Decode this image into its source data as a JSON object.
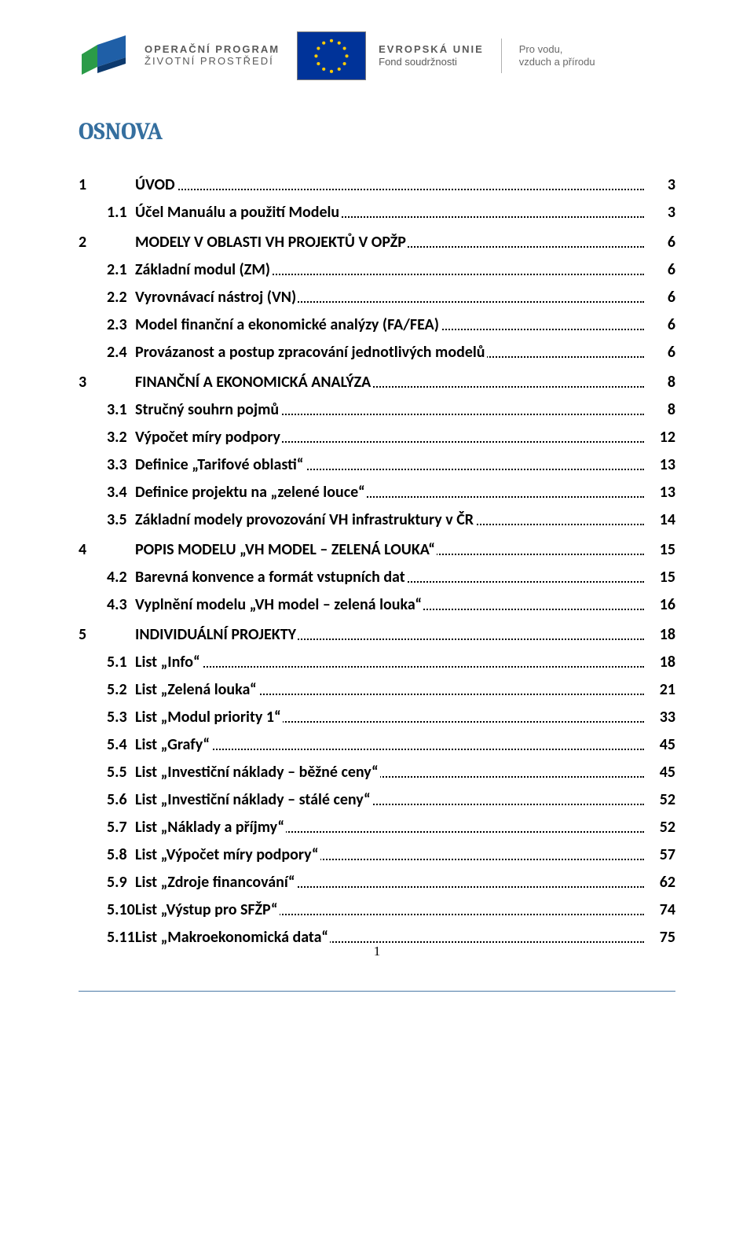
{
  "header": {
    "op_line1": "OPERAČNÍ PROGRAM",
    "op_line2": "ŽIVOTNÍ PROSTŘEDÍ",
    "eu_line1": "EVROPSKÁ UNIE",
    "eu_line2": "Fond soudržnosti",
    "motto_line1": "Pro vodu,",
    "motto_line2": "vzduch a přírodu",
    "logo_colors": {
      "left": "#2b9b48",
      "right": "#1f5fa7"
    },
    "eu_flag_bg": "#003399",
    "eu_star": "#ffcc00"
  },
  "title": "OSNOVA",
  "title_color": "#356f9f",
  "toc": [
    {
      "level": 1,
      "num": "1",
      "label": "ÚVOD",
      "page": "3"
    },
    {
      "level": 2,
      "num": "1.1",
      "label": "Účel Manuálu a použití Modelu",
      "page": "3"
    },
    {
      "level": 1,
      "num": "2",
      "label": "MODELY V OBLASTI VH PROJEKTŮ V OPŽP",
      "page": "6"
    },
    {
      "level": 2,
      "num": "2.1",
      "label": "Základní modul (ZM)",
      "page": "6"
    },
    {
      "level": 2,
      "num": "2.2",
      "label": "Vyrovnávací nástroj (VN)",
      "page": "6"
    },
    {
      "level": 2,
      "num": "2.3",
      "label": "Model finanční a ekonomické analýzy (FA/FEA)",
      "page": "6"
    },
    {
      "level": 2,
      "num": "2.4",
      "label": "Provázanost a postup zpracování jednotlivých modelů",
      "page": "6"
    },
    {
      "level": 1,
      "num": "3",
      "label": "FINANČNÍ A EKONOMICKÁ ANALÝZA",
      "page": "8"
    },
    {
      "level": 2,
      "num": "3.1",
      "label": "Stručný souhrn pojmů",
      "page": "8"
    },
    {
      "level": 2,
      "num": "3.2",
      "label": "Výpočet míry podpory",
      "page": "12"
    },
    {
      "level": 2,
      "num": "3.3",
      "label": "Definice „Tarifové oblasti“",
      "page": "13"
    },
    {
      "level": 2,
      "num": "3.4",
      "label": "Definice projektu na „zelené louce“",
      "page": "13"
    },
    {
      "level": 2,
      "num": "3.5",
      "label": "Základní modely provozování VH infrastruktury v ČR",
      "page": "14"
    },
    {
      "level": 1,
      "num": "4",
      "label": "POPIS MODELU „VH MODEL – ZELENÁ LOUKA“",
      "page": "15"
    },
    {
      "level": 2,
      "num": "4.2",
      "label": "Barevná konvence a formát vstupních dat",
      "page": "15"
    },
    {
      "level": 2,
      "num": "4.3",
      "label": "Vyplnění modelu „VH model – zelená louka“",
      "page": "16"
    },
    {
      "level": 1,
      "num": "5",
      "label": "INDIVIDUÁLNÍ PROJEKTY",
      "page": "18"
    },
    {
      "level": 2,
      "num": "5.1",
      "label": "List „Info“",
      "page": "18"
    },
    {
      "level": 2,
      "num": "5.2",
      "label": "List „Zelená louka“",
      "page": "21"
    },
    {
      "level": 2,
      "num": "5.3",
      "label": "List „Modul priority 1“",
      "page": "33"
    },
    {
      "level": 2,
      "num": "5.4",
      "label": "List „Grafy“",
      "page": "45"
    },
    {
      "level": 2,
      "num": "5.5",
      "label": "List „Investiční náklady – běžné ceny“",
      "page": "45"
    },
    {
      "level": 2,
      "num": "5.6",
      "label": "List „Investiční náklady – stálé ceny“",
      "page": "52"
    },
    {
      "level": 2,
      "num": "5.7",
      "label": "List „Náklady a příjmy“",
      "page": "52"
    },
    {
      "level": 2,
      "num": "5.8",
      "label": "List „Výpočet míry podpory“",
      "page": "57"
    },
    {
      "level": 2,
      "num": "5.9",
      "label": "List „Zdroje financování“",
      "page": "62"
    },
    {
      "level": 2,
      "num": "5.10",
      "label": "List „Výstup pro SFŽP“",
      "page": "74"
    },
    {
      "level": 2,
      "num": "5.11",
      "label": "List „Makroekonomická data“",
      "page": "75"
    }
  ],
  "page_number": "1"
}
